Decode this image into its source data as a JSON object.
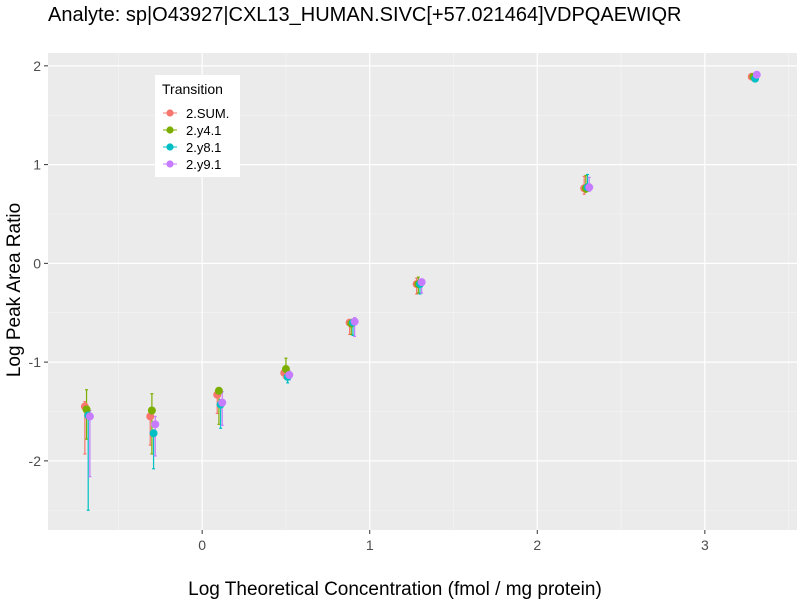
{
  "chart_data": {
    "type": "scatter",
    "title": "Analyte: sp|O43927|CXL13_HUMAN.SIVC[+57.021464]VDPQAEWIQR",
    "xlabel": "Log Theoretical Concentration (fmol / mg protein)",
    "ylabel": "Log Peak Area Ratio",
    "xlim": [
      -0.92,
      3.55
    ],
    "ylim": [
      -2.7,
      2.13
    ],
    "x_ticks": [
      0,
      1,
      2,
      3
    ],
    "y_ticks": [
      -2,
      -1,
      0,
      1,
      2
    ],
    "grid": true,
    "legend": {
      "title": "Transition",
      "position": "top-left"
    },
    "series": [
      {
        "name": "2.SUM.",
        "color": "#F8766D",
        "points": [
          {
            "x": -0.7,
            "y": -1.45,
            "lo": -1.93,
            "hi": -1.4
          },
          {
            "x": -0.31,
            "y": -1.55,
            "lo": -1.84,
            "hi": -1.5
          },
          {
            "x": 0.09,
            "y": -1.33,
            "lo": -1.52,
            "hi": -1.28
          },
          {
            "x": 0.49,
            "y": -1.11,
            "lo": -1.16,
            "hi": -1.06
          },
          {
            "x": 0.88,
            "y": -0.6,
            "lo": -0.72,
            "hi": -0.57
          },
          {
            "x": 1.28,
            "y": -0.21,
            "lo": -0.31,
            "hi": -0.15
          },
          {
            "x": 2.28,
            "y": 0.76,
            "lo": 0.7,
            "hi": 0.88
          },
          {
            "x": 3.28,
            "y": 1.89,
            "lo": 1.87,
            "hi": 1.91
          }
        ]
      },
      {
        "name": "2.y4.1",
        "color": "#7CAE00",
        "points": [
          {
            "x": -0.69,
            "y": -1.48,
            "lo": -1.78,
            "hi": -1.28
          },
          {
            "x": -0.3,
            "y": -1.49,
            "lo": -1.93,
            "hi": -1.32
          },
          {
            "x": 0.1,
            "y": -1.29,
            "lo": -1.63,
            "hi": -1.28
          },
          {
            "x": 0.5,
            "y": -1.07,
            "lo": -1.17,
            "hi": -0.96
          },
          {
            "x": 0.89,
            "y": -0.61,
            "lo": -0.72,
            "hi": -0.59
          },
          {
            "x": 1.29,
            "y": -0.21,
            "lo": -0.3,
            "hi": -0.14
          },
          {
            "x": 2.29,
            "y": 0.76,
            "lo": 0.72,
            "hi": 0.89
          },
          {
            "x": 3.29,
            "y": 1.89,
            "lo": 1.86,
            "hi": 1.92
          }
        ]
      },
      {
        "name": "2.y8.1",
        "color": "#00BFC4",
        "points": [
          {
            "x": -0.68,
            "y": -1.54,
            "lo": -2.5,
            "hi": -1.53
          },
          {
            "x": -0.29,
            "y": -1.72,
            "lo": -2.08,
            "hi": -1.7
          },
          {
            "x": 0.11,
            "y": -1.43,
            "lo": -1.67,
            "hi": -1.38
          },
          {
            "x": 0.51,
            "y": -1.15,
            "lo": -1.21,
            "hi": -1.12
          },
          {
            "x": 0.9,
            "y": -0.6,
            "lo": -0.73,
            "hi": -0.59
          },
          {
            "x": 1.3,
            "y": -0.21,
            "lo": -0.31,
            "hi": -0.19
          },
          {
            "x": 2.3,
            "y": 0.77,
            "lo": 0.73,
            "hi": 0.9
          },
          {
            "x": 3.3,
            "y": 1.87,
            "lo": 1.86,
            "hi": 1.9
          }
        ]
      },
      {
        "name": "2.y9.1",
        "color": "#C77CFF",
        "points": [
          {
            "x": -0.67,
            "y": -1.55,
            "lo": -2.16,
            "hi": -1.49
          },
          {
            "x": -0.28,
            "y": -1.63,
            "lo": -1.95,
            "hi": -1.55
          },
          {
            "x": 0.12,
            "y": -1.41,
            "lo": -1.64,
            "hi": -1.3
          },
          {
            "x": 0.52,
            "y": -1.13,
            "lo": -1.18,
            "hi": -1.09
          },
          {
            "x": 0.91,
            "y": -0.59,
            "lo": -0.74,
            "hi": -0.55
          },
          {
            "x": 1.31,
            "y": -0.19,
            "lo": -0.3,
            "hi": -0.16
          },
          {
            "x": 2.31,
            "y": 0.77,
            "lo": 0.73,
            "hi": 0.87
          },
          {
            "x": 3.31,
            "y": 1.91,
            "lo": 1.88,
            "hi": 1.93
          }
        ]
      }
    ]
  }
}
